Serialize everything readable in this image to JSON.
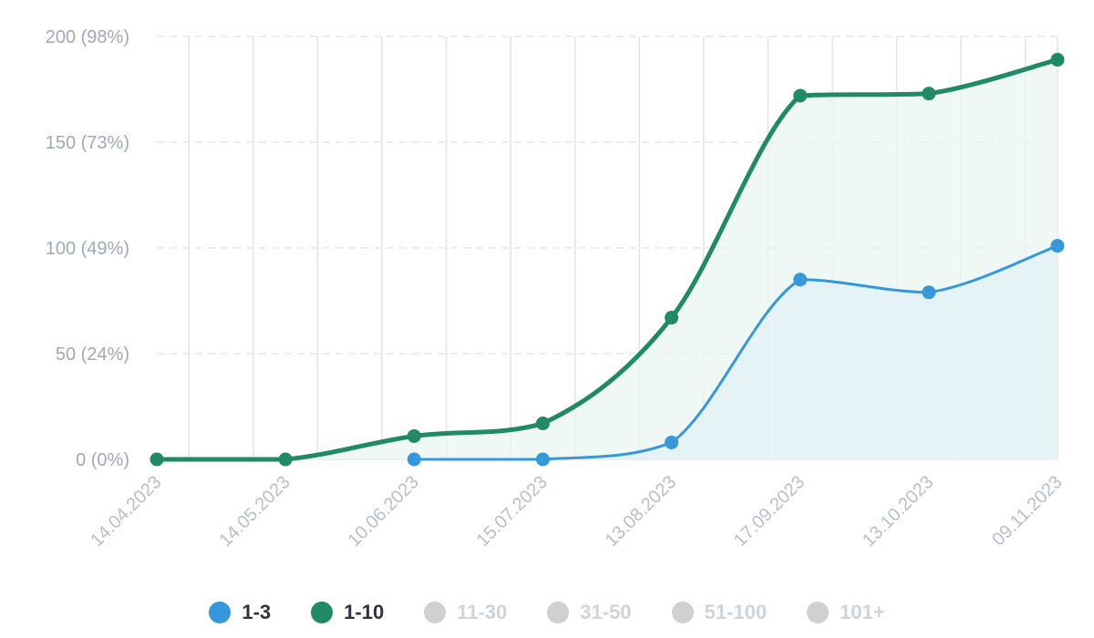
{
  "chart_data": {
    "type": "area",
    "categories": [
      "14.04.2023",
      "14.05.2023",
      "10.06.2023",
      "15.07.2023",
      "13.08.2023",
      "17.09.2023",
      "13.10.2023",
      "09.11.2023"
    ],
    "ytick_labels": [
      "0 (0%)",
      "50 (24%)",
      "100 (49%)",
      "150 (73%)",
      "200 (98%)"
    ],
    "ytick_values": [
      0,
      50,
      100,
      150,
      200
    ],
    "ylim": [
      0,
      200
    ],
    "grid": true,
    "legend_position": "bottom",
    "series": [
      {
        "name": "1-10",
        "color": "#1f8a63",
        "fill": "#eaf5f1",
        "points": [
          {
            "x": 0.0,
            "y": 0
          },
          {
            "x": 1.0,
            "y": 0
          },
          {
            "x": 2.0,
            "y": 11
          },
          {
            "x": 3.0,
            "y": 17
          },
          {
            "x": 4.0,
            "y": 67
          },
          {
            "x": 5.0,
            "y": 172
          },
          {
            "x": 6.0,
            "y": 173
          },
          {
            "x": 7.0,
            "y": 189
          }
        ]
      },
      {
        "name": "1-3",
        "color": "#3498db",
        "fill": "#e2f0f5",
        "points": [
          {
            "x": 2.0,
            "y": 0
          },
          {
            "x": 3.0,
            "y": 0
          },
          {
            "x": 4.0,
            "y": 8
          },
          {
            "x": 5.0,
            "y": 85
          },
          {
            "x": 6.0,
            "y": 79
          },
          {
            "x": 7.0,
            "y": 101
          }
        ]
      }
    ]
  },
  "legend": [
    {
      "label": "1-3",
      "color": "#3498db",
      "active": true
    },
    {
      "label": "1-10",
      "color": "#1f8a63",
      "active": true
    },
    {
      "label": "11-30",
      "color": "#d0d0d0",
      "active": false
    },
    {
      "label": "31-50",
      "color": "#d0d0d0",
      "active": false
    },
    {
      "label": "51-100",
      "color": "#d0d0d0",
      "active": false
    },
    {
      "label": "101+",
      "color": "#d0d0d0",
      "active": false
    }
  ]
}
